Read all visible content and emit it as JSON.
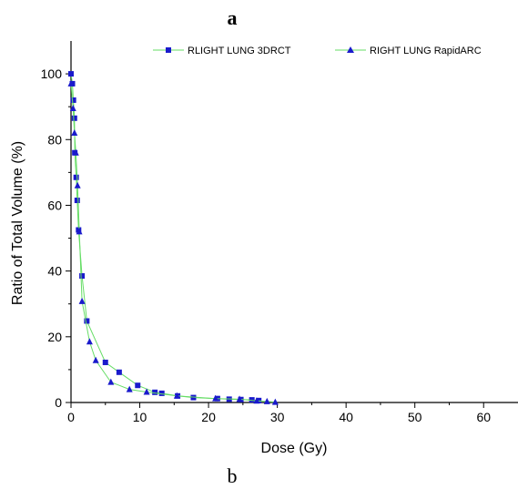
{
  "panel_label_top": "a",
  "panel_label_bottom": "b",
  "chart_data": {
    "type": "line",
    "xlabel": "Dose (Gy)",
    "ylabel": "Ratio of Total Volume (%)",
    "xlim": [
      0,
      65
    ],
    "ylim": [
      0,
      110
    ],
    "xticks": [
      0,
      10,
      20,
      30,
      40,
      50,
      60
    ],
    "yticks": [
      0,
      20,
      40,
      60,
      80,
      100
    ],
    "grid": false,
    "legend_position": "top",
    "line_color": "#66dd66",
    "marker_color": "#1a1acc",
    "series": [
      {
        "name": "RLIGHT LUNG 3DRCT",
        "marker": "square",
        "x": [
          0,
          0.2,
          0.35,
          0.5,
          0.55,
          0.75,
          0.9,
          1.1,
          1.6,
          2.3,
          5.0,
          7.0,
          9.7,
          12.2,
          13.2,
          15.5,
          17.8,
          21.3,
          23.0,
          24.7,
          26.3,
          27.3
        ],
        "y": [
          100,
          97,
          92,
          86.5,
          76,
          68.5,
          61.5,
          52.5,
          38.5,
          24.8,
          12.2,
          9.2,
          5.2,
          3.1,
          2.8,
          2.0,
          1.5,
          1.2,
          1.0,
          0.9,
          0.8,
          0.6
        ]
      },
      {
        "name": "RIGHT LUNG RapidARC",
        "marker": "triangle",
        "x": [
          0,
          0.3,
          0.5,
          0.7,
          0.95,
          1.2,
          1.6,
          2.7,
          3.6,
          5.8,
          8.5,
          11.0,
          15.4,
          21.0,
          24.5,
          27.0,
          28.5,
          29.7
        ],
        "y": [
          97,
          89.5,
          82,
          76,
          66,
          52,
          30.8,
          18.5,
          12.8,
          6.2,
          4.0,
          3.2,
          2.0,
          1.2,
          1.0,
          0.5,
          0.3,
          0.1
        ]
      }
    ]
  }
}
